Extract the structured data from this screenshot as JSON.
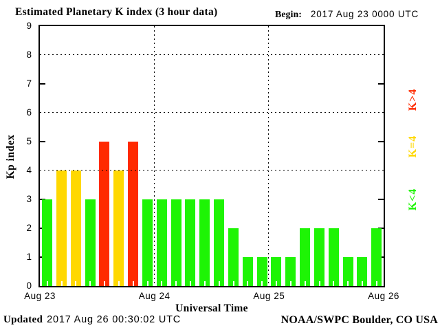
{
  "title": "Estimated Planetary K index (3 hour data)",
  "begin": {
    "label": "Begin:",
    "value": "2017 Aug 23 0000 UTC"
  },
  "footer": {
    "updated_label": "Updated",
    "updated_value": "2017 Aug 26 00:30:02 UTC",
    "source": "NOAA/SWPC Boulder, CO USA"
  },
  "chart_data": {
    "type": "bar",
    "title": "Estimated Planetary K index (3 hour data)",
    "xlabel": "Universal Time",
    "ylabel": "Kp index",
    "ylim": [
      0,
      9
    ],
    "yticks": [
      0,
      1,
      2,
      3,
      4,
      5,
      6,
      7,
      8,
      9
    ],
    "grid_y": [
      4,
      6,
      8
    ],
    "side_tick_y": [
      1,
      2,
      3,
      5,
      7
    ],
    "grid": "dotted horizontal lines at Kp 4/6/8; dotted vertical lines at day boundaries",
    "x_categories": [
      "Aug 23",
      "Aug 24",
      "Aug 25",
      "Aug 26"
    ],
    "bars_per_day": 8,
    "bar_interval_hours": 3,
    "values": [
      3,
      4,
      4,
      3,
      5,
      4,
      5,
      3,
      3,
      3,
      3,
      3,
      3,
      2,
      1,
      1,
      1,
      1,
      2,
      2,
      2,
      1,
      1,
      2
    ],
    "colors": {
      "below4": "#1ef405",
      "equal4": "#ffd800",
      "above4": "#ff2a00"
    },
    "legend_position": "right",
    "legend": [
      {
        "label": "K>4",
        "color": "#ff2a00"
      },
      {
        "label": "K=4",
        "color": "#ffd800"
      },
      {
        "label": "K<4",
        "color": "#1ef405"
      }
    ]
  }
}
